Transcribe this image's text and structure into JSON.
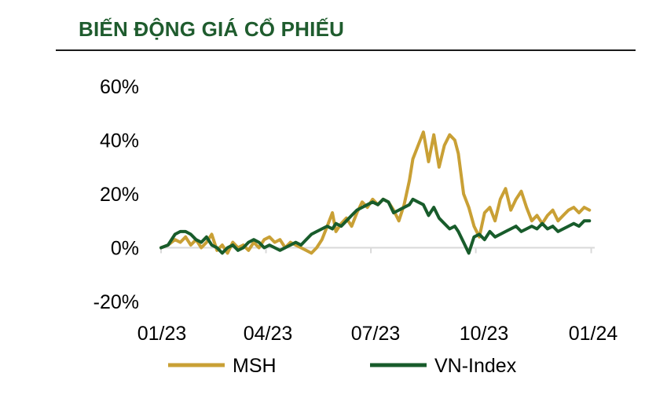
{
  "title": "BIẾN ĐỘNG GIÁ CỔ PHIẾU",
  "colors": {
    "title": "#1f5c2e",
    "msh": "#c9a035",
    "vnindex": "#185c2b",
    "grid": "#d9d9d9"
  },
  "chart_data": {
    "type": "line",
    "ylim": [
      -20,
      60
    ],
    "yticks": [
      60,
      40,
      20,
      0,
      -20
    ],
    "ytick_labels": [
      "60%",
      "40%",
      "20%",
      "0%",
      "-20%"
    ],
    "xticks": [
      "01/23",
      "04/23",
      "07/23",
      "10/23",
      "01/24"
    ],
    "x_range": [
      0,
      12.4
    ],
    "legend": "bottom",
    "grid": false,
    "series": [
      {
        "name": "MSH",
        "color": "#c9a035",
        "x": [
          0,
          0.2,
          0.4,
          0.55,
          0.7,
          0.85,
          1.0,
          1.15,
          1.3,
          1.45,
          1.6,
          1.75,
          1.9,
          2.05,
          2.2,
          2.35,
          2.5,
          2.65,
          2.8,
          2.95,
          3.1,
          3.25,
          3.4,
          3.55,
          3.7,
          3.85,
          4.0,
          4.15,
          4.3,
          4.45,
          4.6,
          4.75,
          4.9,
          5.0,
          5.15,
          5.3,
          5.45,
          5.6,
          5.75,
          5.9,
          6.05,
          6.2,
          6.35,
          6.5,
          6.65,
          6.8,
          6.95,
          7.1,
          7.2,
          7.35,
          7.5,
          7.65,
          7.8,
          7.95,
          8.1,
          8.25,
          8.4,
          8.5,
          8.65,
          8.8,
          8.95,
          9.1,
          9.25,
          9.4,
          9.55,
          9.7,
          9.85,
          10.0,
          10.15,
          10.3,
          10.45,
          10.6,
          10.75,
          10.9,
          11.05,
          11.2,
          11.35,
          11.5,
          11.65,
          11.8,
          11.95,
          12.1,
          12.25
        ],
        "values": [
          0,
          1,
          3,
          2,
          4,
          1,
          3,
          0,
          2,
          5,
          -1,
          1,
          -2,
          2,
          0,
          1,
          -1,
          2,
          0,
          3,
          4,
          2,
          3,
          0,
          2,
          1,
          0,
          -1,
          -2,
          0,
          3,
          8,
          13,
          6,
          9,
          11,
          8,
          13,
          17,
          15,
          18,
          16,
          18,
          17,
          14,
          10,
          16,
          25,
          33,
          38,
          43,
          32,
          42,
          30,
          38,
          42,
          40,
          35,
          20,
          15,
          8,
          4,
          13,
          15,
          10,
          18,
          22,
          14,
          18,
          21,
          15,
          10,
          12,
          9,
          12,
          14,
          10,
          12,
          14,
          15,
          13,
          15,
          14
        ]
      },
      {
        "name": "VN-Index",
        "color": "#185c2b",
        "x": [
          0,
          0.2,
          0.4,
          0.55,
          0.7,
          0.85,
          1.0,
          1.15,
          1.3,
          1.45,
          1.6,
          1.75,
          1.9,
          2.05,
          2.2,
          2.35,
          2.5,
          2.65,
          2.8,
          2.95,
          3.1,
          3.25,
          3.4,
          3.55,
          3.7,
          3.85,
          4.0,
          4.15,
          4.3,
          4.45,
          4.6,
          4.75,
          4.9,
          5.0,
          5.15,
          5.3,
          5.45,
          5.6,
          5.75,
          5.9,
          6.05,
          6.2,
          6.35,
          6.5,
          6.65,
          6.8,
          6.95,
          7.1,
          7.2,
          7.35,
          7.5,
          7.65,
          7.8,
          7.95,
          8.1,
          8.25,
          8.4,
          8.5,
          8.65,
          8.8,
          8.95,
          9.1,
          9.25,
          9.4,
          9.55,
          9.7,
          9.85,
          10.0,
          10.15,
          10.3,
          10.45,
          10.6,
          10.75,
          10.9,
          11.05,
          11.2,
          11.35,
          11.5,
          11.65,
          11.8,
          11.95,
          12.1,
          12.25
        ],
        "values": [
          0,
          1,
          5,
          6,
          6,
          5,
          3,
          2,
          4,
          1,
          0,
          -2,
          0,
          1,
          -1,
          0,
          2,
          3,
          2,
          0,
          1,
          0,
          -1,
          0,
          1,
          2,
          1,
          3,
          5,
          6,
          7,
          8,
          7,
          9,
          8,
          10,
          12,
          14,
          15,
          16,
          17,
          16,
          18,
          17,
          13,
          14,
          15,
          16,
          18,
          17,
          16,
          12,
          15,
          11,
          9,
          7,
          8,
          6,
          2,
          -2,
          4,
          5,
          3,
          6,
          4,
          5,
          6,
          7,
          8,
          6,
          7,
          8,
          7,
          9,
          7,
          8,
          6,
          7,
          8,
          9,
          8,
          10,
          10
        ]
      }
    ]
  }
}
